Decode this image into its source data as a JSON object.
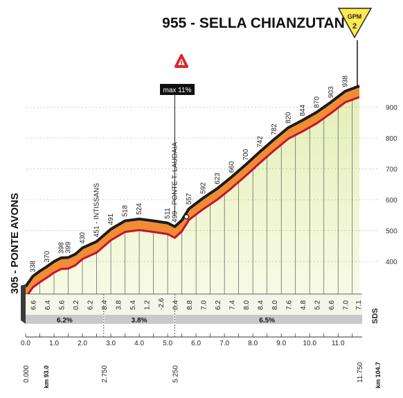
{
  "chart_data": {
    "type": "area",
    "title": "955 - SELLA CHIANZUTAN",
    "gpm": {
      "label": "GPM",
      "category": "2"
    },
    "max_gradient": {
      "label": "max 11%",
      "at_km": 5.25
    },
    "start_location": "305 - PONTE AVONS",
    "xlim": [
      0,
      11.75
    ],
    "ylim": [
      305,
      955
    ],
    "y_ticks": [
      400,
      500,
      600,
      700,
      800,
      900
    ],
    "x_ticks": [
      {
        "v": 0,
        "label": "0.0"
      },
      {
        "v": 1,
        "label": "1.0"
      },
      {
        "v": 2,
        "label": "2.0"
      },
      {
        "v": 3,
        "label": "3.0"
      },
      {
        "v": 4,
        "label": "4.0"
      },
      {
        "v": 5,
        "label": "5.0"
      },
      {
        "v": 6,
        "label": "6.0"
      },
      {
        "v": 7,
        "label": "7.0"
      },
      {
        "v": 8,
        "label": "8.0"
      },
      {
        "v": 9,
        "label": "9.0"
      },
      {
        "v": 10,
        "label": "10.0"
      },
      {
        "v": 11,
        "label": "11.0"
      }
    ],
    "distance_labels": [
      {
        "v": 0,
        "label": "0.000"
      },
      {
        "v": 2.75,
        "label": "2.750"
      },
      {
        "v": 5.25,
        "label": "5.250"
      },
      {
        "v": 11.75,
        "label": "11.750"
      }
    ],
    "km_start": "km 93.0",
    "km_end": "km 104.7",
    "sds": "SDS",
    "profile": [
      {
        "x": 0.0,
        "y": 305
      },
      {
        "x": 0.25,
        "y": 338
      },
      {
        "x": 0.5,
        "y": 355
      },
      {
        "x": 0.75,
        "y": 370
      },
      {
        "x": 1.0,
        "y": 386
      },
      {
        "x": 1.25,
        "y": 398
      },
      {
        "x": 1.5,
        "y": 399
      },
      {
        "x": 1.75,
        "y": 410
      },
      {
        "x": 2.0,
        "y": 430
      },
      {
        "x": 2.5,
        "y": 451
      },
      {
        "x": 3.0,
        "y": 491
      },
      {
        "x": 3.5,
        "y": 518
      },
      {
        "x": 4.0,
        "y": 524
      },
      {
        "x": 4.5,
        "y": 518
      },
      {
        "x": 5.0,
        "y": 511
      },
      {
        "x": 5.25,
        "y": 499
      },
      {
        "x": 5.5,
        "y": 520
      },
      {
        "x": 5.75,
        "y": 557
      },
      {
        "x": 6.25,
        "y": 592
      },
      {
        "x": 6.75,
        "y": 623
      },
      {
        "x": 7.25,
        "y": 660
      },
      {
        "x": 7.75,
        "y": 700
      },
      {
        "x": 8.25,
        "y": 742
      },
      {
        "x": 8.75,
        "y": 782
      },
      {
        "x": 9.25,
        "y": 820
      },
      {
        "x": 9.75,
        "y": 844
      },
      {
        "x": 10.25,
        "y": 870
      },
      {
        "x": 10.75,
        "y": 903
      },
      {
        "x": 11.25,
        "y": 938
      },
      {
        "x": 11.75,
        "y": 955
      }
    ],
    "point_labels": [
      {
        "x": 0.25,
        "y": 338,
        "label": "338"
      },
      {
        "x": 0.75,
        "y": 370,
        "label": "370"
      },
      {
        "x": 1.25,
        "y": 398,
        "label": "398"
      },
      {
        "x": 1.5,
        "y": 399,
        "label": "399"
      },
      {
        "x": 2.0,
        "y": 430,
        "label": "430"
      },
      {
        "x": 2.5,
        "y": 451,
        "label": "451 - INTISSANS"
      },
      {
        "x": 3.0,
        "y": 491,
        "label": "491"
      },
      {
        "x": 3.5,
        "y": 518,
        "label": "518"
      },
      {
        "x": 4.0,
        "y": 524,
        "label": "524"
      },
      {
        "x": 5.0,
        "y": 511,
        "label": "511"
      },
      {
        "x": 5.25,
        "y": 499,
        "label": "499 - PONTE T. LAUDAIA"
      },
      {
        "x": 5.75,
        "y": 557,
        "label": "557"
      },
      {
        "x": 6.25,
        "y": 592,
        "label": "592"
      },
      {
        "x": 6.75,
        "y": 623,
        "label": "623"
      },
      {
        "x": 7.25,
        "y": 660,
        "label": "660"
      },
      {
        "x": 7.75,
        "y": 700,
        "label": "700"
      },
      {
        "x": 8.25,
        "y": 742,
        "label": "742"
      },
      {
        "x": 8.75,
        "y": 782,
        "label": "782"
      },
      {
        "x": 9.25,
        "y": 820,
        "label": "820"
      },
      {
        "x": 9.75,
        "y": 844,
        "label": "844"
      },
      {
        "x": 10.25,
        "y": 870,
        "label": "870"
      },
      {
        "x": 10.75,
        "y": 903,
        "label": "903"
      },
      {
        "x": 11.25,
        "y": 938,
        "label": "938"
      }
    ],
    "segment_gradients": [
      {
        "x": 0.25,
        "label": "6.6"
      },
      {
        "x": 0.75,
        "label": "6.4"
      },
      {
        "x": 1.25,
        "label": "5.6"
      },
      {
        "x": 1.75,
        "label": "0.2"
      },
      {
        "x": 2.25,
        "label": "6.2"
      },
      {
        "x": 2.75,
        "label": "8.4"
      },
      {
        "x": 3.25,
        "label": "3.8"
      },
      {
        "x": 3.75,
        "label": "5.4"
      },
      {
        "x": 4.25,
        "label": "1.2"
      },
      {
        "x": 4.75,
        "label": "-2.6"
      },
      {
        "x": 5.25,
        "label": "0.4"
      },
      {
        "x": 5.75,
        "label": "8.8"
      },
      {
        "x": 6.25,
        "label": "7.0"
      },
      {
        "x": 6.75,
        "label": "6.2"
      },
      {
        "x": 7.25,
        "label": "7.4"
      },
      {
        "x": 7.75,
        "label": "8.0"
      },
      {
        "x": 8.25,
        "label": "8.4"
      },
      {
        "x": 8.75,
        "label": "8.0"
      },
      {
        "x": 9.25,
        "label": "7.6"
      },
      {
        "x": 9.75,
        "label": "4.8"
      },
      {
        "x": 10.25,
        "label": "5.2"
      },
      {
        "x": 10.75,
        "label": "6.6"
      },
      {
        "x": 11.25,
        "label": "7.0"
      },
      {
        "x": 11.7,
        "label": "7.1"
      }
    ],
    "sector_gradients": [
      {
        "from": 0,
        "to": 2.75,
        "label": "6.2%"
      },
      {
        "from": 2.75,
        "to": 5.25,
        "label": "3.8%"
      },
      {
        "from": 5.25,
        "to": 11.75,
        "label": "6.5%"
      }
    ],
    "colors": {
      "fill": "#eef5cf",
      "band_orange": "#f08c34",
      "band_dark": "#1c1c1c",
      "band_red": "#c8102e",
      "gradient_bar": "#c9c9c9",
      "triangle_warn": "#e0262b",
      "gpm_fill": "#ffe94f"
    }
  }
}
